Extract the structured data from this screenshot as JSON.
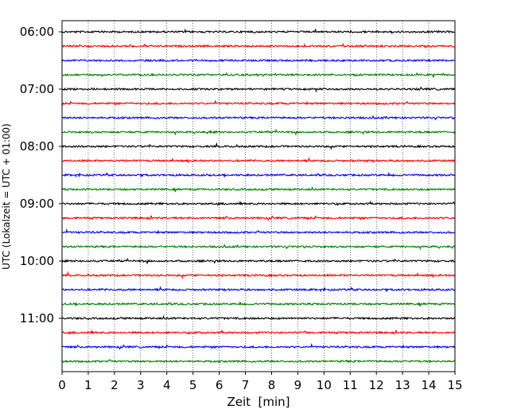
{
  "chart_data": {
    "type": "line",
    "title": "",
    "xlabel": "Zeit  [min]",
    "ylabel": "UTC (Lokalzeit = UTC + 01:00)",
    "xlim": [
      0,
      15
    ],
    "x_ticks": [
      "0",
      "1",
      "2",
      "3",
      "4",
      "5",
      "6",
      "7",
      "8",
      "9",
      "10",
      "11",
      "12",
      "13",
      "14",
      "15"
    ],
    "y_tick_labels": [
      "06:00",
      "07:00",
      "08:00",
      "09:00",
      "10:00",
      "11:00"
    ],
    "grid": "vertical dotted",
    "legend": "none",
    "trace_interval_minutes": 15,
    "series_colors": [
      "#000000",
      "#ff0000",
      "#0000ff",
      "#008000"
    ],
    "traces": [
      {
        "start": "06:00",
        "color": "#000000"
      },
      {
        "start": "06:15",
        "color": "#ff0000"
      },
      {
        "start": "06:30",
        "color": "#0000ff"
      },
      {
        "start": "06:45",
        "color": "#008000"
      },
      {
        "start": "07:00",
        "color": "#000000"
      },
      {
        "start": "07:15",
        "color": "#ff0000"
      },
      {
        "start": "07:30",
        "color": "#0000ff"
      },
      {
        "start": "07:45",
        "color": "#008000"
      },
      {
        "start": "08:00",
        "color": "#000000"
      },
      {
        "start": "08:15",
        "color": "#ff0000"
      },
      {
        "start": "08:30",
        "color": "#0000ff"
      },
      {
        "start": "08:45",
        "color": "#008000"
      },
      {
        "start": "09:00",
        "color": "#000000"
      },
      {
        "start": "09:15",
        "color": "#ff0000"
      },
      {
        "start": "09:30",
        "color": "#0000ff"
      },
      {
        "start": "09:45",
        "color": "#008000"
      },
      {
        "start": "10:00",
        "color": "#000000"
      },
      {
        "start": "10:15",
        "color": "#ff0000"
      },
      {
        "start": "10:30",
        "color": "#0000ff"
      },
      {
        "start": "10:45",
        "color": "#008000"
      },
      {
        "start": "11:00",
        "color": "#000000"
      },
      {
        "start": "11:15",
        "color": "#ff0000"
      },
      {
        "start": "11:30",
        "color": "#0000ff"
      },
      {
        "start": "11:45",
        "color": "#008000"
      }
    ]
  }
}
